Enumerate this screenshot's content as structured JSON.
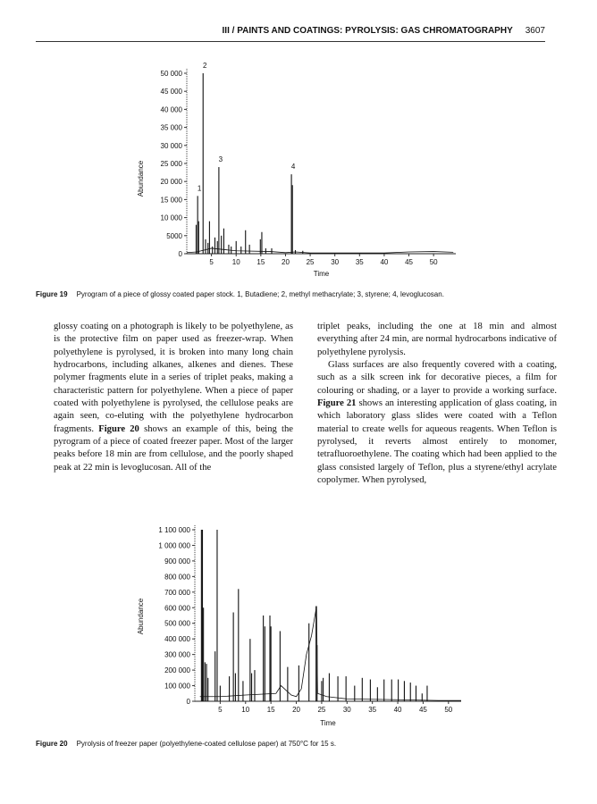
{
  "header": {
    "section": "III / PAINTS AND COATINGS: PYROLYSIS: GAS CHROMATOGRAPHY",
    "page_number": "3607"
  },
  "figure19": {
    "label": "Figure 19",
    "caption": "Pyrogram of a piece of glossy coated paper stock. 1, Butadiene; 2, methyl methacrylate; 3, styrene; 4, levoglucosan."
  },
  "figure20": {
    "label": "Figure 20",
    "caption": "Pyrolysis of freezer paper (polyethylene-coated cellulose paper) at 750°C for 15 s."
  },
  "body": {
    "left": "glossy coating on a photograph is likely to be polyethylene, as is the protective film on paper used as freezer-wrap. When polyethylene is pyrolysed, it is broken into many long chain hydrocarbons, including alkanes, alkenes and dienes. These polymer fragments elute in a series of triplet peaks, making a characteristic pattern for polyethylene. When a piece of paper coated with polyethylene is pyrolysed, the cellulose peaks are again seen, co-eluting with the polyethylene hydrocarbon fragments.",
    "left_ref": "Figure 20",
    "left_tail": "shows an example of this, being the pyrogram of a piece of coated freezer paper. Most of the larger peaks before 18 min are from cellulose, and the poorly shaped peak at 22 min is levoglucosan. All of the",
    "right_p1": "triplet peaks, including the one at 18 min and almost everything after 24 min, are normal hydrocarbons indicative of polyethylene pyrolysis.",
    "right_p2_a": "Glass surfaces are also frequently covered with a coating, such as a silk screen ink for decorative pieces, a film for colouring or shading, or a layer to provide a working surface.",
    "right_ref": "Figure 21",
    "right_p2_b": "shows an interesting application of glass coating, in which laboratory glass slides were coated with a Teflon material to create wells for aqueous reagents. When Teflon is pyrolysed, it reverts almost entirely to monomer, tetrafluoroethylene. The coating which had been applied to the glass consisted largely of Teflon, plus a styrene/ethyl acrylate copolymer. When pyrolysed,"
  },
  "chart_data": [
    {
      "type": "line",
      "xlabel": "Time",
      "ylabel": "Abundance",
      "xlim": [
        0,
        54.5
      ],
      "ylim": [
        0,
        50000
      ],
      "xticks": [
        "5",
        "10",
        "15",
        "20",
        "25",
        "30",
        "35",
        "40",
        "45",
        "50"
      ],
      "yticks": [
        "0",
        "5000",
        "10 000",
        "15 000",
        "20 000",
        "25 000",
        "30 000",
        "35 000",
        "40 000",
        "45 000",
        "50 000"
      ],
      "peaks": [
        [
          1.9,
          8000
        ],
        [
          2.2,
          16000
        ],
        [
          2.4,
          9000
        ],
        [
          3.3,
          50000
        ],
        [
          3.8,
          4000
        ],
        [
          4.3,
          3000
        ],
        [
          4.6,
          9000
        ],
        [
          5.2,
          2000
        ],
        [
          5.7,
          4500
        ],
        [
          6.2,
          3500
        ],
        [
          6.5,
          24000
        ],
        [
          7.0,
          5000
        ],
        [
          7.5,
          7000
        ],
        [
          8.5,
          2500
        ],
        [
          9.0,
          2000
        ],
        [
          10.0,
          3500
        ],
        [
          11.0,
          2000
        ],
        [
          11.9,
          6500
        ],
        [
          12.7,
          2500
        ],
        [
          14.9,
          4000
        ],
        [
          15.2,
          6000
        ],
        [
          16.0,
          1500
        ],
        [
          17.2,
          1500
        ],
        [
          21.2,
          22000
        ],
        [
          21.4,
          19000
        ],
        [
          22.0,
          1000
        ],
        [
          23.5,
          800
        ]
      ],
      "baseline": [
        [
          0,
          300
        ],
        [
          2,
          500
        ],
        [
          5,
          1500
        ],
        [
          10,
          800
        ],
        [
          17,
          600
        ],
        [
          20,
          300
        ],
        [
          22,
          500
        ],
        [
          25,
          200
        ],
        [
          40,
          200
        ],
        [
          45,
          500
        ],
        [
          50,
          600
        ],
        [
          54,
          400
        ]
      ],
      "annotations": [
        {
          "text": "1",
          "x": 2.2,
          "y": 16000
        },
        {
          "text": "2",
          "x": 3.3,
          "y": 50000
        },
        {
          "text": "3",
          "x": 6.5,
          "y": 24000
        },
        {
          "text": "4",
          "x": 21.2,
          "y": 22000
        }
      ]
    },
    {
      "type": "line",
      "xlabel": "Time",
      "ylabel": "Abundance",
      "xlim": [
        0,
        52.5
      ],
      "ylim": [
        0,
        1100000
      ],
      "xticks": [
        "5",
        "10",
        "15",
        "20",
        "25",
        "30",
        "35",
        "40",
        "45",
        "50"
      ],
      "yticks": [
        "0",
        "100 000",
        "200 000",
        "300 000",
        "400 000",
        "500 000",
        "600 000",
        "700 000",
        "800 000",
        "900 000",
        "1 000 000",
        "1 100 000"
      ],
      "peaks": [
        [
          1.3,
          1100000
        ],
        [
          1.5,
          1100000
        ],
        [
          1.7,
          600000
        ],
        [
          2.0,
          250000
        ],
        [
          2.3,
          240000
        ],
        [
          2.6,
          150000
        ],
        [
          4.0,
          320000
        ],
        [
          4.4,
          1100000
        ],
        [
          5.0,
          100000
        ],
        [
          6.8,
          160000
        ],
        [
          7.6,
          570000
        ],
        [
          8.0,
          180000
        ],
        [
          8.6,
          720000
        ],
        [
          9.5,
          130000
        ],
        [
          10.9,
          400000
        ],
        [
          11.2,
          180000
        ],
        [
          11.8,
          200000
        ],
        [
          13.5,
          550000
        ],
        [
          13.8,
          480000
        ],
        [
          14.8,
          550000
        ],
        [
          15.0,
          480000
        ],
        [
          16.8,
          450000
        ],
        [
          18.3,
          220000
        ],
        [
          20.5,
          230000
        ],
        [
          22.5,
          500000
        ],
        [
          23.9,
          610000
        ],
        [
          24.1,
          360000
        ],
        [
          25.0,
          130000
        ],
        [
          25.3,
          150000
        ],
        [
          26.5,
          180000
        ],
        [
          28.2,
          160000
        ],
        [
          29.8,
          160000
        ],
        [
          31.5,
          100000
        ],
        [
          33.0,
          150000
        ],
        [
          34.6,
          140000
        ],
        [
          36.0,
          90000
        ],
        [
          37.3,
          140000
        ],
        [
          38.8,
          140000
        ],
        [
          40.1,
          140000
        ],
        [
          41.3,
          130000
        ],
        [
          42.5,
          120000
        ],
        [
          43.6,
          100000
        ],
        [
          44.8,
          50000
        ],
        [
          45.8,
          100000
        ]
      ],
      "baseline": [
        [
          1,
          30000
        ],
        [
          5,
          30000
        ],
        [
          10,
          40000
        ],
        [
          16,
          50000
        ],
        [
          17,
          100000
        ],
        [
          19,
          40000
        ],
        [
          20,
          30000
        ],
        [
          21,
          80000
        ],
        [
          22,
          300000
        ],
        [
          23,
          420000
        ],
        [
          24,
          610000
        ],
        [
          24.2,
          50000
        ],
        [
          26,
          30000
        ],
        [
          30,
          15000
        ],
        [
          40,
          10000
        ],
        [
          48,
          5000
        ],
        [
          52.5,
          5000
        ]
      ]
    }
  ]
}
